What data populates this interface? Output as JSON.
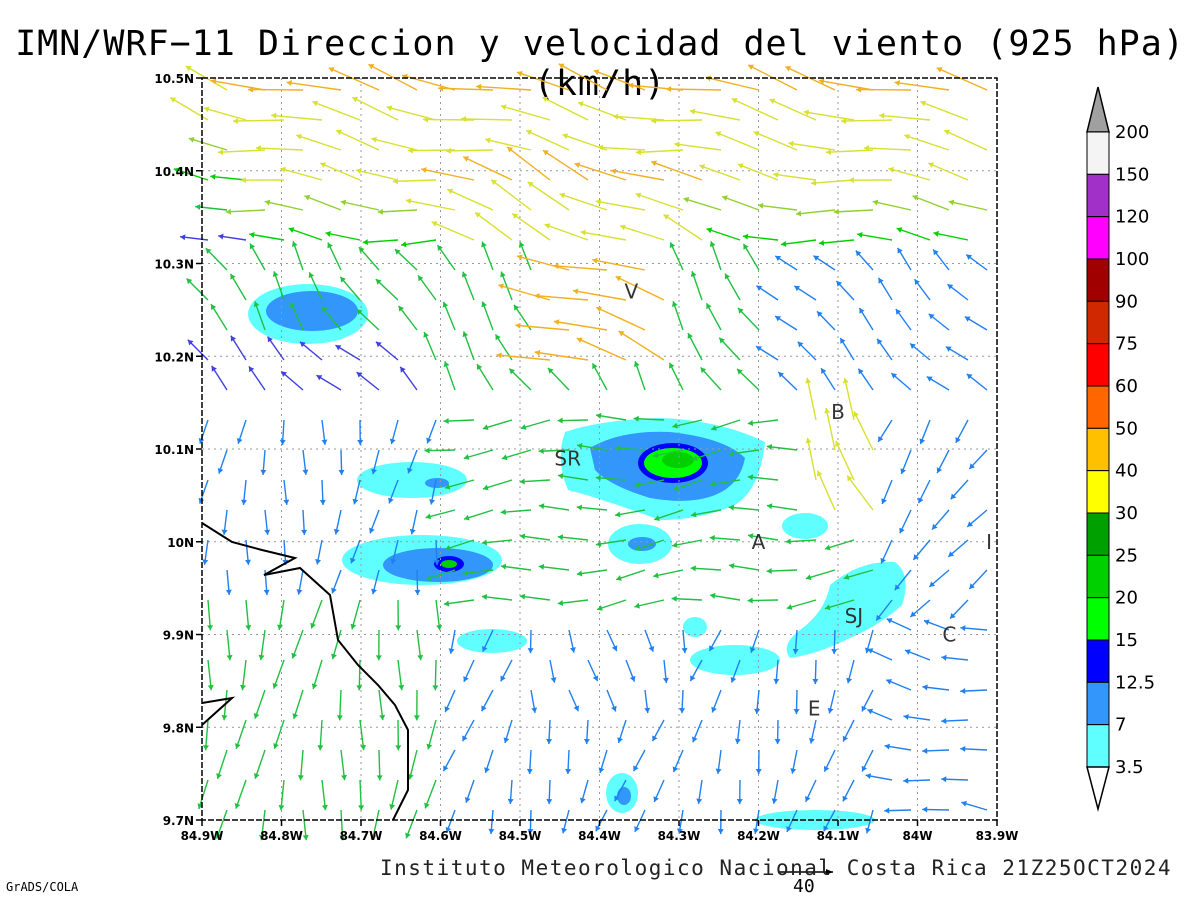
{
  "title": "IMN/WRF−11 Direccion y velocidad del viento (925 hPa)(km/h)",
  "footer": "Instituto Meteorologico Nacional Costa Rica 21Z25OCT2024",
  "software": "GrADS/COLA",
  "reference_vector_label": "40",
  "lon_ticks": [
    "84.9W",
    "84.8W",
    "84.7W",
    "84.6W",
    "84.5W",
    "84.4W",
    "84.3W",
    "84.2W",
    "84.1W",
    "84W",
    "83.9W"
  ],
  "lat_ticks": [
    "10.5N",
    "10.4N",
    "10.3N",
    "10.2N",
    "10.1N",
    "10N",
    "9.9N",
    "9.8N",
    "9.7N"
  ],
  "extent": {
    "lon_min": -84.9,
    "lon_max": -83.9,
    "lat_min": 9.7,
    "lat_max": 10.5
  },
  "places": [
    {
      "label": "V",
      "lon": -84.36,
      "lat": 10.27
    },
    {
      "label": "SR",
      "lon": -84.44,
      "lat": 10.09
    },
    {
      "label": "B",
      "lon": -84.1,
      "lat": 10.14
    },
    {
      "label": "A",
      "lon": -84.2,
      "lat": 10.0
    },
    {
      "label": "I",
      "lon": -83.91,
      "lat": 10.0
    },
    {
      "label": "SJ",
      "lon": -84.08,
      "lat": 9.92
    },
    {
      "label": "C",
      "lon": -83.96,
      "lat": 9.9
    },
    {
      "label": "E",
      "lon": -84.13,
      "lat": 9.82
    }
  ],
  "colorbar": {
    "labels": [
      "200",
      "150",
      "120",
      "100",
      "90",
      "75",
      "60",
      "50",
      "40",
      "30",
      "25",
      "20",
      "15",
      "12.5",
      "7",
      "3.5"
    ],
    "colors": [
      "#f4f4f4",
      "#a030c8",
      "#ff00ff",
      "#a00000",
      "#d02800",
      "#ff0000",
      "#ff6600",
      "#ffc000",
      "#ffff00",
      "#00a000",
      "#00d000",
      "#00ff00",
      "#0000ff",
      "#3296fa",
      "#60ffff"
    ]
  },
  "colors": {
    "contour_light": "#60ffff",
    "contour_mid": "#3296fa",
    "contour_dark": "#0000ff",
    "contour_green": "#00d000",
    "grid": "#999999",
    "coast": "#000000"
  }
}
